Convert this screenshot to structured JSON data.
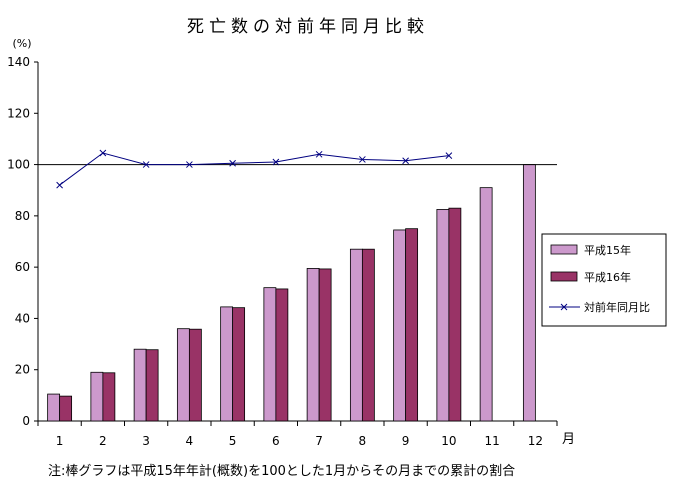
{
  "chart_data": {
    "type": "bar",
    "title": "死亡数の対前年同月比較",
    "ylabel": "(%)",
    "xlabel": "月",
    "categories": [
      "1",
      "2",
      "3",
      "4",
      "5",
      "6",
      "7",
      "8",
      "9",
      "10",
      "11",
      "12"
    ],
    "ylim": [
      0,
      140
    ],
    "yticks": [
      0,
      20,
      40,
      60,
      80,
      100,
      120,
      140
    ],
    "series": [
      {
        "name": "平成15年",
        "type": "bar",
        "color": "#cc99cc",
        "values": [
          10.5,
          19,
          28,
          36,
          44.5,
          52,
          59.5,
          67,
          74.5,
          82.5,
          91,
          100
        ]
      },
      {
        "name": "平成16年",
        "type": "bar",
        "color": "#993366",
        "values": [
          9.7,
          18.8,
          27.8,
          35.8,
          44.2,
          51.5,
          59.3,
          67,
          75,
          83,
          null,
          null
        ]
      },
      {
        "name": "対前年同月比",
        "type": "line",
        "color": "#000080",
        "values": [
          92,
          104.5,
          100,
          100,
          100.5,
          101,
          104,
          102,
          101.5,
          103.5,
          null,
          null
        ]
      }
    ],
    "reference_line": 100,
    "legend_position": "right",
    "grid": false,
    "note": "注:棒グラフは平成15年年計(概数)を100とした1月からその月までの累計の割合"
  }
}
